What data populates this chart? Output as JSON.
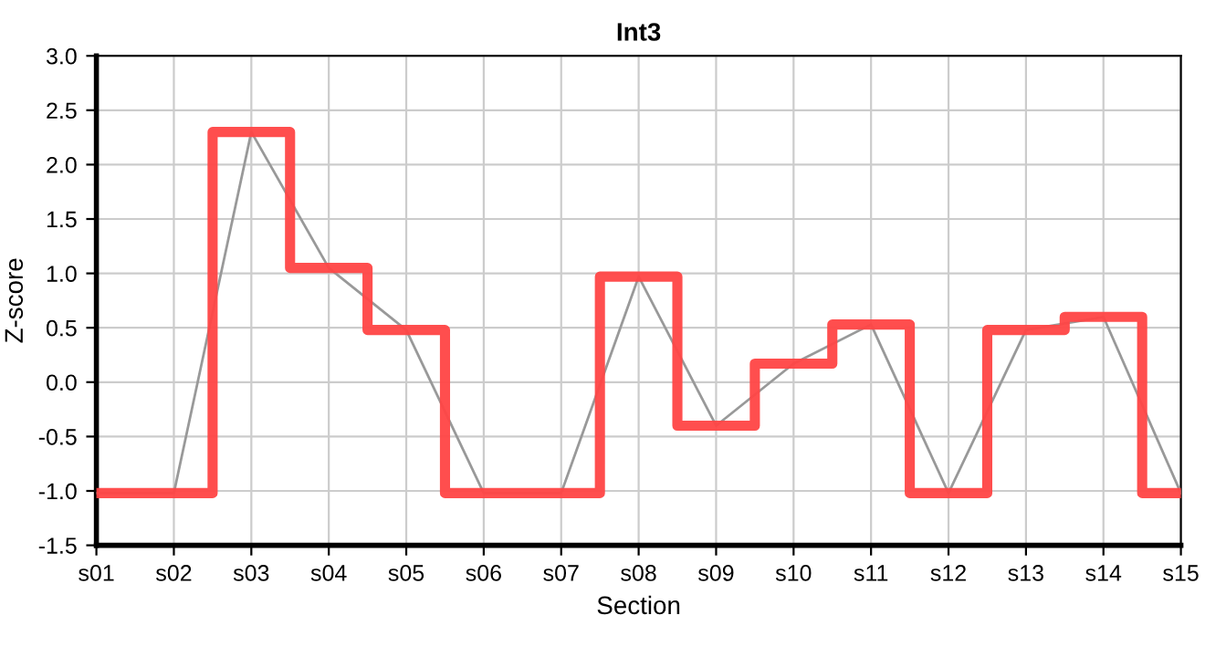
{
  "chart_data": {
    "type": "step",
    "title": "Int3",
    "xlabel": "Section",
    "ylabel": "Z-score",
    "categories": [
      "s01",
      "s02",
      "s03",
      "s04",
      "s05",
      "s06",
      "s07",
      "s08",
      "s09",
      "s10",
      "s11",
      "s12",
      "s13",
      "s14",
      "s15"
    ],
    "series": [
      {
        "type": "line",
        "color": "#999999",
        "values": [
          -1.02,
          -1.02,
          2.3,
          1.05,
          0.48,
          -1.02,
          -1.02,
          0.97,
          -0.4,
          0.17,
          0.53,
          -1.02,
          0.48,
          0.6,
          -1.02
        ]
      },
      {
        "color": "#ff4444",
        "values": [
          -1.02,
          -1.02,
          2.3,
          1.05,
          0.48,
          -1.02,
          -1.02,
          0.97,
          -0.4,
          0.17,
          0.53,
          -1.02,
          0.48,
          0.6,
          -1.02
        ]
      }
    ],
    "ylim": [
      -1.5,
      3.0
    ],
    "yticks": [
      {
        "value": -1.5,
        "label": "-1.5"
      },
      {
        "value": -1.0,
        "label": "-1.0"
      },
      {
        "value": -0.5,
        "label": "-0.5"
      },
      {
        "value": 0.0,
        "label": "0.0"
      },
      {
        "value": 0.5,
        "label": "0.5"
      },
      {
        "value": 1.0,
        "label": "1.0"
      },
      {
        "value": 1.5,
        "label": "1.5"
      },
      {
        "value": 2.0,
        "label": "2.0"
      },
      {
        "value": 2.5,
        "label": "2.5"
      },
      {
        "value": 3.0,
        "label": "3.0"
      }
    ],
    "grid": true,
    "legend": false
  }
}
